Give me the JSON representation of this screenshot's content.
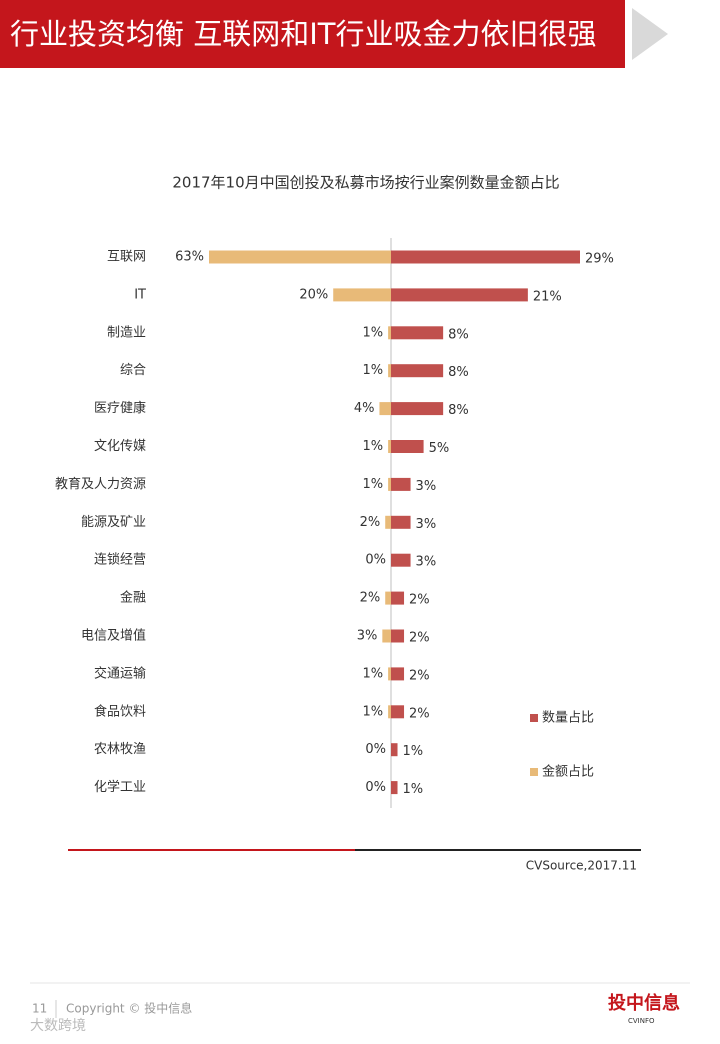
{
  "header": {
    "title": "行业投资均衡 互联网和IT行业吸金力依旧很强"
  },
  "chart_data": {
    "type": "butterfly-bar",
    "title": "2017年10月中国创投及私募市场按行业案例数量金额占比",
    "categories": [
      "互联网",
      "IT",
      "制造业",
      "综合",
      "医疗健康",
      "文化传媒",
      "教育及人力资源",
      "能源及矿业",
      "连锁经营",
      "金融",
      "电信及增值",
      "交通运输",
      "食品饮料",
      "农林牧渔",
      "化学工业"
    ],
    "series": [
      {
        "name": "数量占比",
        "color": "#c0504d",
        "values": [
          29,
          21,
          8,
          8,
          8,
          5,
          3,
          3,
          3,
          2,
          2,
          2,
          2,
          1,
          1
        ],
        "value_labels": [
          "29%",
          "21%",
          "8%",
          "8%",
          "8%",
          "5%",
          "3%",
          "3%",
          "3%",
          "2%",
          "2%",
          "2%",
          "2%",
          "1%",
          "1%"
        ]
      },
      {
        "name": "金额占比",
        "color": "#e8ba78",
        "values": [
          63,
          20,
          1,
          1,
          4,
          1,
          1,
          2,
          0,
          2,
          3,
          1,
          1,
          0,
          0
        ],
        "value_labels": [
          "63%",
          "20%",
          "1%",
          "1%",
          "4%",
          "1%",
          "1%",
          "2%",
          "0%",
          "2%",
          "3%",
          "1%",
          "1%",
          "0%",
          "0%"
        ]
      }
    ],
    "source": "CVSource,2017.11"
  },
  "footer": {
    "page": "11",
    "copyright": "Copyright © 投中信息",
    "logo": "投中信息",
    "logo_sub": "CVINFO",
    "watermark": "大数跨境"
  }
}
